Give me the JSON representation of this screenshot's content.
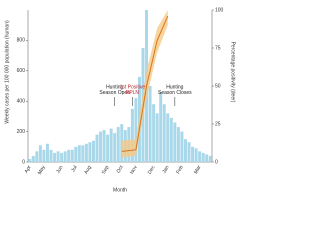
{
  "chart_data": {
    "type": "bar",
    "x_label": "Month",
    "y_label": "Weekly cases per 100 000 population (human)",
    "y2_label": "Percentage positivity (deer)",
    "categories": [
      "Apr",
      null,
      null,
      null,
      "May",
      null,
      null,
      null,
      null,
      "Jun",
      null,
      null,
      null,
      "Jul",
      null,
      null,
      null,
      "Aug",
      null,
      null,
      null,
      null,
      "Sep",
      null,
      null,
      null,
      "Oct",
      null,
      null,
      null,
      "Nov",
      null,
      null,
      null,
      null,
      "Dec",
      null,
      null,
      null,
      "Jan",
      null,
      null,
      null,
      "Feb",
      null,
      null,
      null,
      null,
      "Mar",
      null,
      null,
      null
    ],
    "series": [
      {
        "color": "#a9d8ea",
        "values": [
          20,
          40,
          70,
          110,
          80,
          120,
          80,
          60,
          70,
          60,
          70,
          80,
          80,
          100,
          110,
          110,
          120,
          130,
          140,
          180,
          200,
          210,
          180,
          220,
          190,
          230,
          250,
          210,
          230,
          350,
          420,
          560,
          750,
          1000,
          500,
          380,
          320,
          460,
          380,
          320,
          290,
          260,
          230,
          200,
          150,
          130,
          100,
          90,
          70,
          60,
          50,
          40
        ]
      },
      {
        "type": "line",
        "axis": "y2",
        "color": "#d9731b",
        "band_color": "#f6c986",
        "values": [
          null,
          null,
          null,
          null,
          null,
          null,
          null,
          null,
          null,
          null,
          null,
          null,
          null,
          null,
          null,
          null,
          null,
          null,
          null,
          null,
          null,
          null,
          null,
          null,
          null,
          null,
          7,
          null,
          null,
          null,
          8,
          null,
          null,
          50,
          null,
          null,
          80,
          null,
          null,
          96,
          null,
          null,
          null,
          null,
          null,
          null,
          null,
          null,
          null,
          null,
          null,
          null
        ],
        "lower": [
          null,
          null,
          null,
          null,
          null,
          null,
          null,
          null,
          null,
          null,
          null,
          null,
          null,
          null,
          null,
          null,
          null,
          null,
          null,
          null,
          null,
          null,
          null,
          null,
          null,
          null,
          3,
          null,
          null,
          null,
          4,
          null,
          null,
          42,
          null,
          null,
          72,
          null,
          null,
          90,
          null,
          null,
          null,
          null,
          null,
          null,
          null,
          null,
          null,
          null,
          null,
          null
        ],
        "upper": [
          null,
          null,
          null,
          null,
          null,
          null,
          null,
          null,
          null,
          null,
          null,
          null,
          null,
          null,
          null,
          null,
          null,
          null,
          null,
          null,
          null,
          null,
          null,
          null,
          null,
          null,
          14,
          null,
          null,
          null,
          15,
          null,
          null,
          60,
          null,
          null,
          88,
          null,
          null,
          100,
          null,
          null,
          null,
          null,
          null,
          null,
          null,
          null,
          null,
          null,
          null,
          null
        ]
      }
    ],
    "ylim": [
      0,
      1000
    ],
    "yticks": [
      0,
      200,
      400,
      600,
      800
    ],
    "y2lim": [
      0,
      100
    ],
    "y2ticks": [
      0,
      25,
      50,
      75,
      100
    ],
    "annotations": [
      {
        "lines": [
          "Hunting",
          "Season Open"
        ],
        "color": "#222222",
        "at": 24
      },
      {
        "lines": [
          "1st Positive",
          "RPLN"
        ],
        "color": "#c0202a",
        "at": 29
      },
      {
        "lines": [
          "Hunting",
          "Season Closes"
        ],
        "color": "#222222",
        "at": 41
      }
    ]
  }
}
